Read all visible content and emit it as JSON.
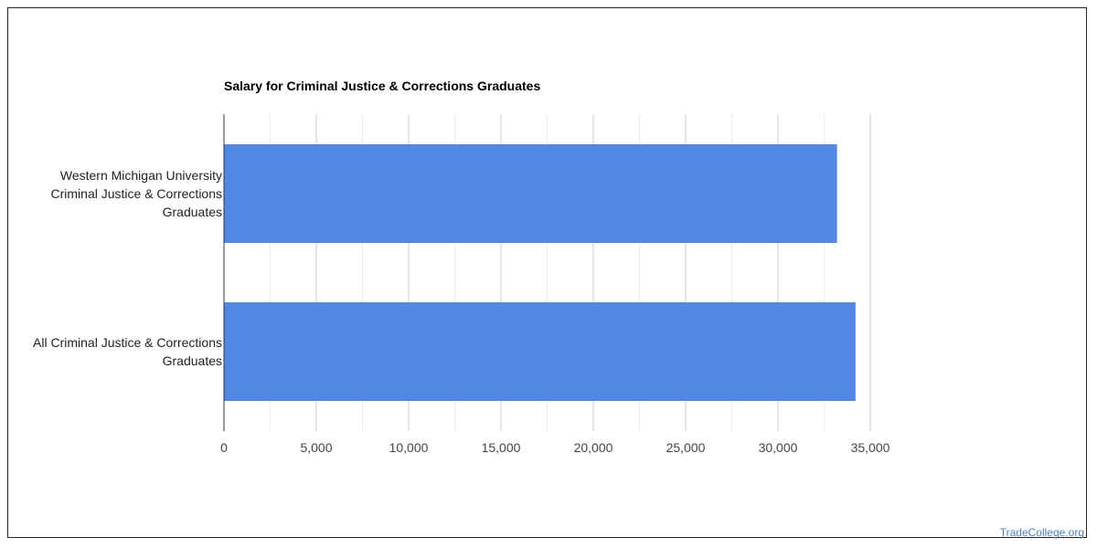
{
  "chart_data": {
    "type": "bar",
    "orientation": "horizontal",
    "title": "Salary for Criminal Justice & Corrections Graduates",
    "categories": [
      [
        "Western Michigan University",
        "Criminal Justice & Corrections",
        "Graduates"
      ],
      [
        "All Criminal Justice & Corrections",
        "Graduates"
      ]
    ],
    "values": [
      33200,
      34200
    ],
    "xlim": [
      0,
      35000
    ],
    "xticks": [
      "0",
      "5,000",
      "10,000",
      "15,000",
      "20,000",
      "25,000",
      "30,000",
      "35,000"
    ],
    "grid": true,
    "bar_color": "#5287e3"
  },
  "watermark": "TradeCollege.org"
}
